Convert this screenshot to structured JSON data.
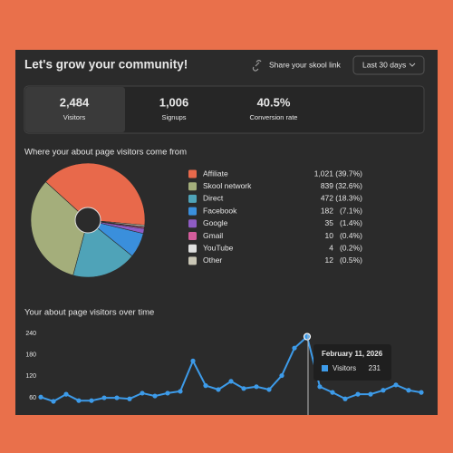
{
  "header": {
    "title": "Let's grow your community!",
    "share_link": "Share your skool link",
    "range": "Last 30 days"
  },
  "stats": [
    {
      "value": "2,484",
      "label": "Visitors"
    },
    {
      "value": "1,006",
      "label": "Signups"
    },
    {
      "value": "40.5%",
      "label": "Conversion rate"
    }
  ],
  "chart_data": [
    {
      "type": "pie",
      "title": "Where your about page visitors come from",
      "categories": [
        "Affiliate",
        "Skool network",
        "Direct",
        "Facebook",
        "Google",
        "Gmail",
        "YouTube",
        "Other"
      ],
      "values": [
        1021,
        839,
        472,
        182,
        35,
        10,
        4,
        12
      ],
      "value_labels": [
        "1,021",
        "839",
        "472",
        "182",
        "35",
        "10",
        "4",
        "12"
      ],
      "shares": [
        39.7,
        32.6,
        18.3,
        7.1,
        1.4,
        0.4,
        0.2,
        0.5
      ],
      "share_labels": [
        "(39.7%)",
        "(32.6%)",
        "(18.3%)",
        "(7.1%)",
        "(1.4%)",
        "(0.4%)",
        "(0.2%)",
        "(0.5%)"
      ],
      "colors": [
        "#e8694b",
        "#a4ae7b",
        "#4fa3b8",
        "#3a8fdc",
        "#8e5cc4",
        "#d45d9c",
        "#e0e0e0",
        "#c9c6b5"
      ]
    },
    {
      "type": "line",
      "title": "Your about page visitors over time",
      "categories": [
        null,
        null,
        null,
        null,
        null,
        null,
        null,
        null,
        null,
        null,
        null,
        null,
        null,
        null,
        null,
        null,
        null,
        null,
        null,
        null,
        null,
        null,
        null,
        null,
        null,
        null,
        null,
        null,
        null,
        null,
        null
      ],
      "series": [
        {
          "name": "Visitors",
          "color": "#3d9be9",
          "values": [
            62,
            50,
            70,
            52,
            52,
            60,
            60,
            57,
            73,
            65,
            73,
            78,
            163,
            94,
            83,
            106,
            86,
            91,
            83,
            122,
            199,
            231,
            91,
            75,
            57,
            70,
            70,
            81,
            96,
            81,
            75
          ]
        }
      ],
      "ylim": [
        12,
        240
      ],
      "yticks": [
        60,
        120,
        180,
        240
      ],
      "tooltip_title": "February 11, 2026"
    }
  ]
}
